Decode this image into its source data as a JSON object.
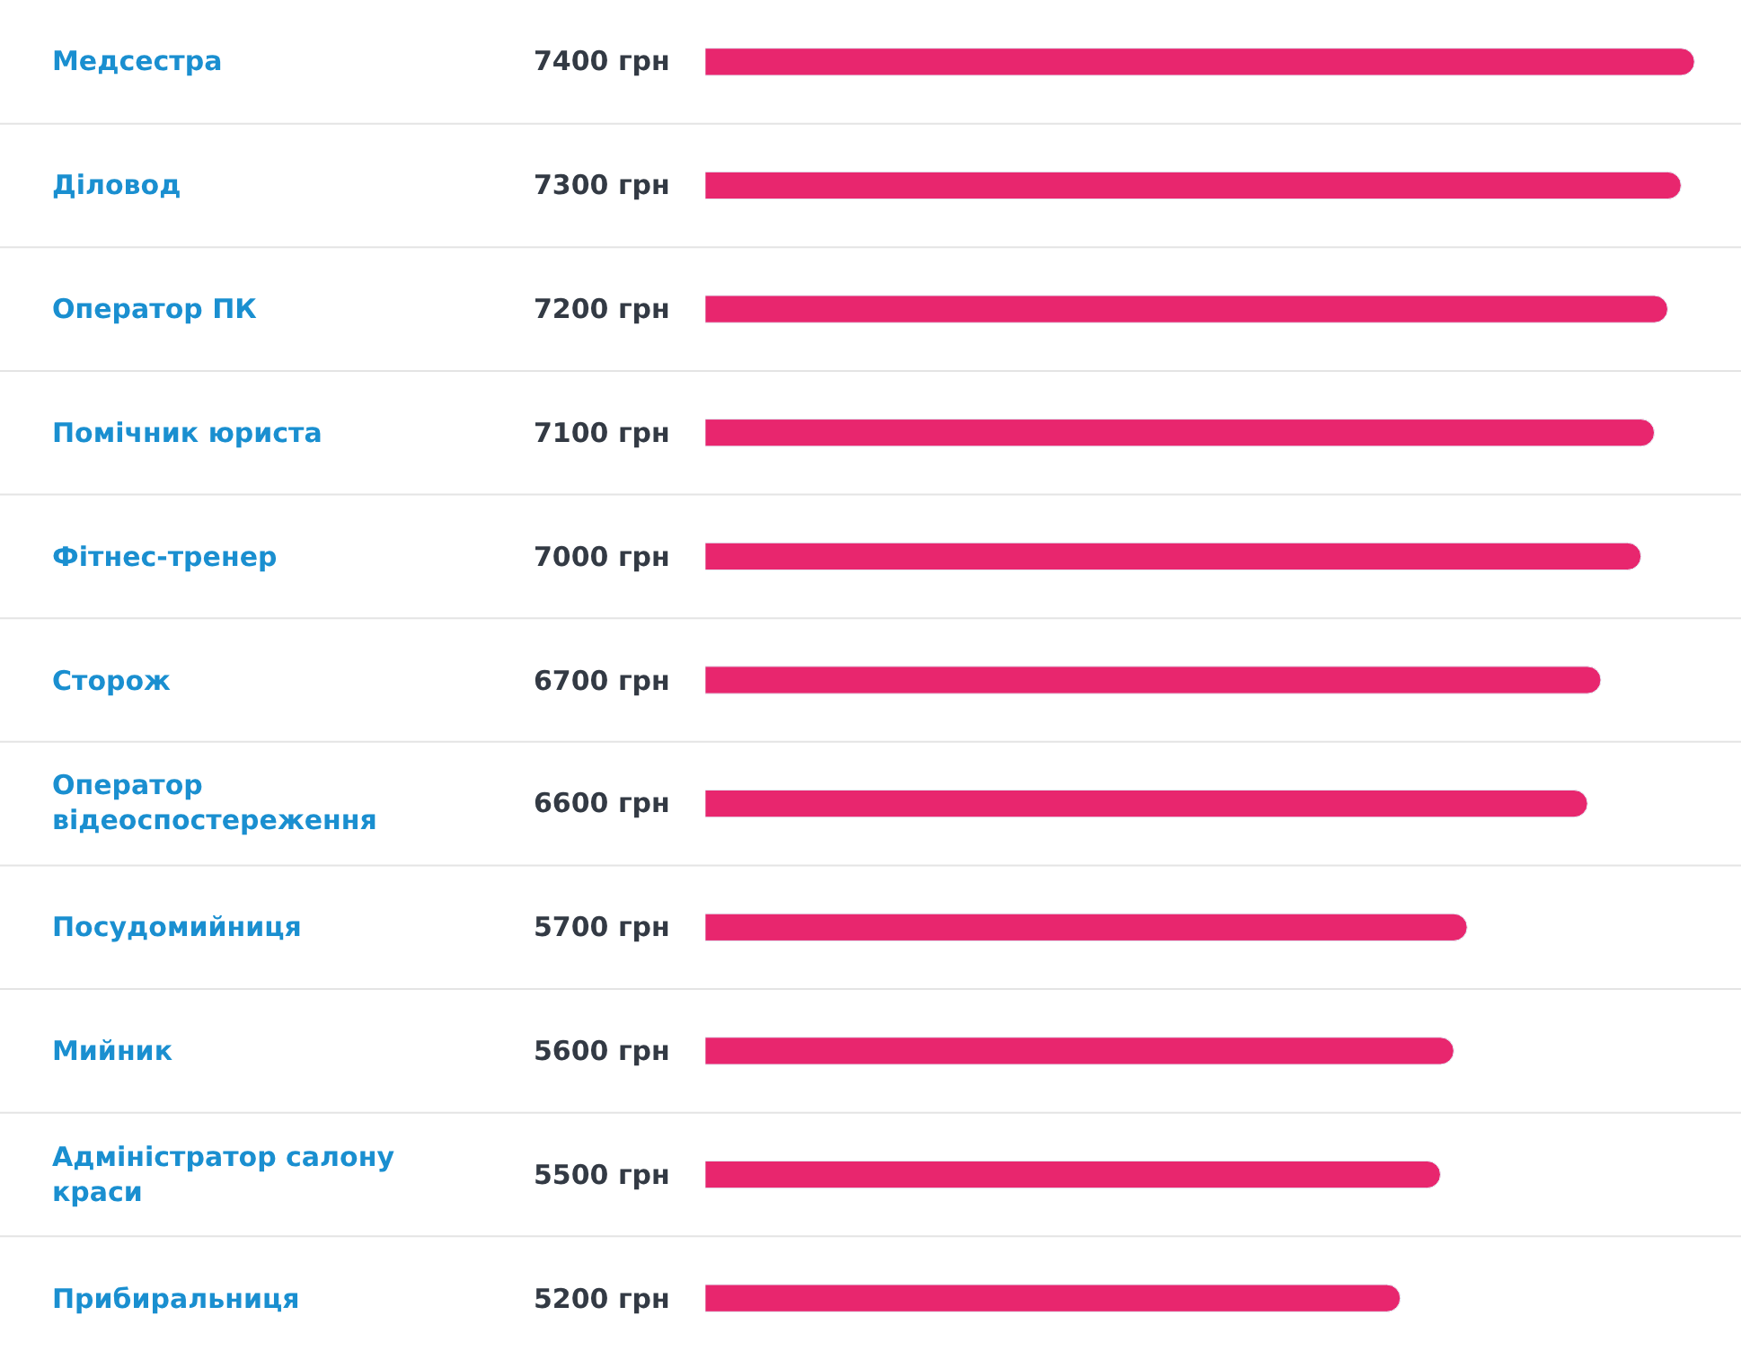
{
  "chart_data": {
    "type": "bar",
    "orientation": "horizontal",
    "categories": [
      "Медсестра",
      "Діловод",
      "Оператор ПК",
      "Помічник юриста",
      "Фітнес-тренер",
      "Сторож",
      "Оператор відеоспостереження",
      "Посудомийниця",
      "Мийник",
      "Адміністратор салону краси",
      "Прибиральниця"
    ],
    "series": [
      {
        "color": "#e8266e",
        "values": [
          7400,
          7300,
          7200,
          7100,
          7000,
          6700,
          6600,
          5700,
          5600,
          5500,
          5200
        ],
        "value_labels": [
          "7400 грн",
          "7300 грн",
          "7200 грн",
          "7100 грн",
          "7000 грн",
          "6700 грн",
          "6600 грн",
          "5700 грн",
          "5600 грн",
          "5500 грн",
          "5200 грн"
        ]
      }
    ]
  }
}
